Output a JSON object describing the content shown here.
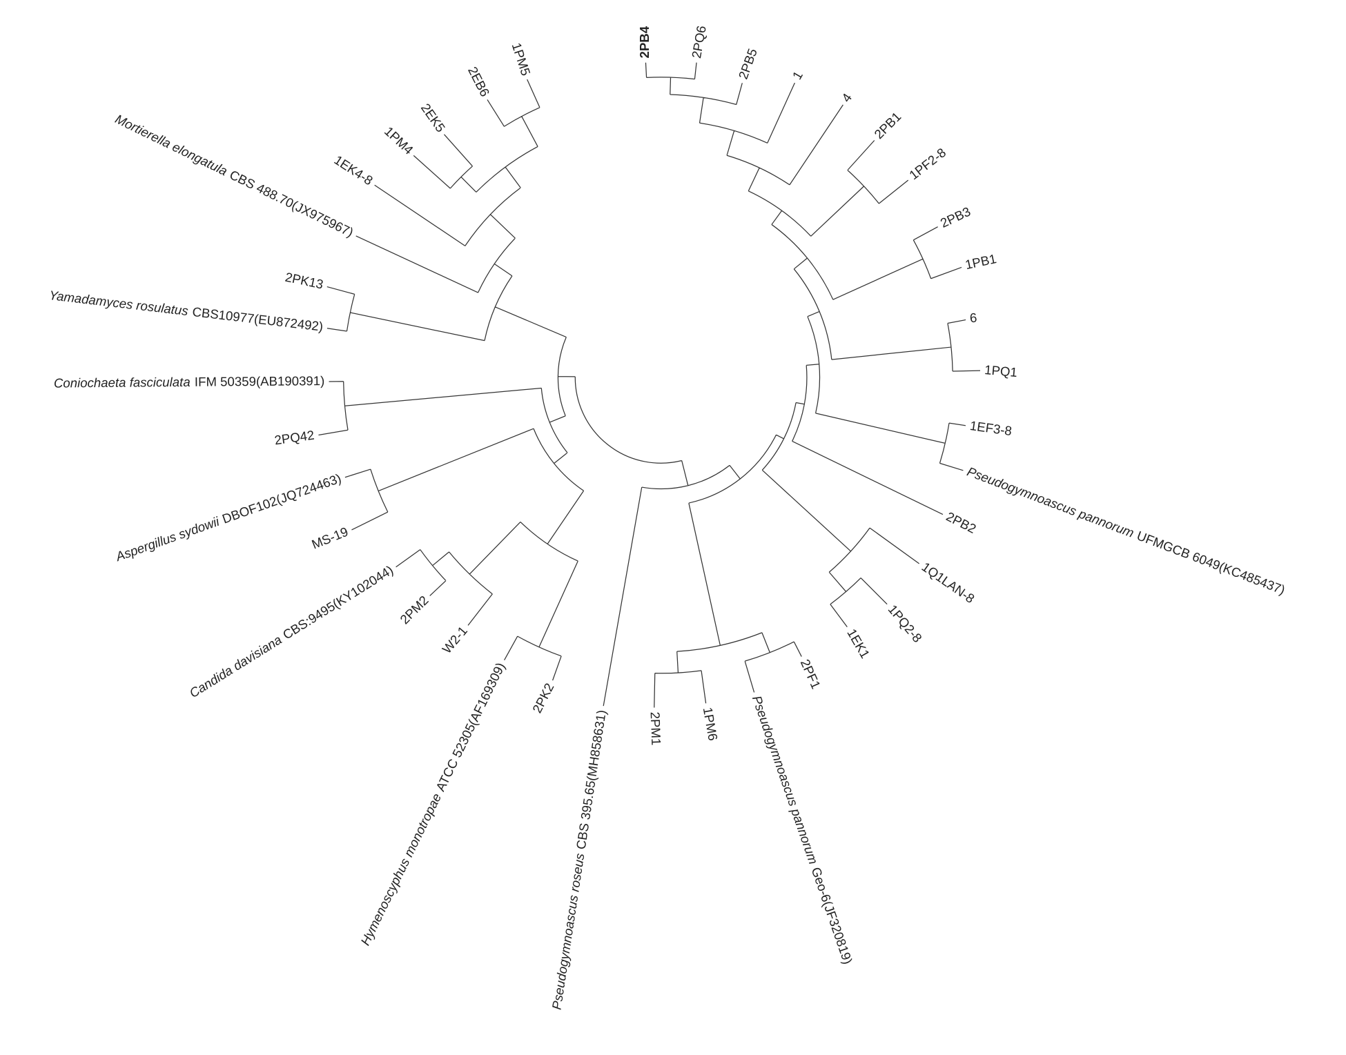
{
  "leaves": [
    {
      "label": "2PB4"
    },
    {
      "label": "2PQ6"
    },
    {
      "label": "2PB5"
    },
    {
      "label": "1"
    },
    {
      "label": "4"
    },
    {
      "label": "2PB1"
    },
    {
      "label": "1PF2-8"
    },
    {
      "label": "2PB3"
    },
    {
      "label": "1PB1"
    },
    {
      "label": "6"
    },
    {
      "label": "1PQ1"
    },
    {
      "label": "1EF3-8"
    },
    {
      "species": "Pseudogymnoascus pannorum",
      "label": "UFMGCB 6049(KC485437)"
    },
    {
      "label": "2PB2"
    },
    {
      "label": "1Q1LAN-8"
    },
    {
      "label": "1PQ2-8"
    },
    {
      "label": "1EK1"
    },
    {
      "label": "2PF1"
    },
    {
      "species": "Pseudogymnoascus pannorum",
      "label": "Geo-6(JF320819)"
    },
    {
      "label": "1PM6"
    },
    {
      "label": "2PM1"
    },
    {
      "species": "Pseudogymnoascus roseus",
      "label": "CBS 395.65(MH858631)"
    },
    {
      "label": "2PK2"
    },
    {
      "species": "Hymenoscyphus monotropae",
      "label": "ATCC 52305(AF169309)"
    },
    {
      "label": "W2-1"
    },
    {
      "label": "2PM2"
    },
    {
      "species": "Candida davisiana",
      "label": "CBS:9495(KY102044)"
    },
    {
      "label": "MS-19"
    },
    {
      "species": "Aspergillus sydowii",
      "label": "DBOF102(JQ724463)"
    },
    {
      "label": "2PQ42"
    },
    {
      "species": "Coniochaeta fasciculata",
      "label": "IFM 50359(AB190391)"
    },
    {
      "species": "Yamadamyces rosulatus",
      "label": "CBS10977(EU872492)"
    },
    {
      "label": "2PK13"
    },
    {
      "species": "Mortierella elongatula",
      "label": "CBS 488.70(JX975967)"
    },
    {
      "label": "1EK4-8"
    },
    {
      "label": "1PM4"
    },
    {
      "label": "2EK5"
    },
    {
      "label": "2EB6"
    },
    {
      "label": "1PM5"
    }
  ]
}
